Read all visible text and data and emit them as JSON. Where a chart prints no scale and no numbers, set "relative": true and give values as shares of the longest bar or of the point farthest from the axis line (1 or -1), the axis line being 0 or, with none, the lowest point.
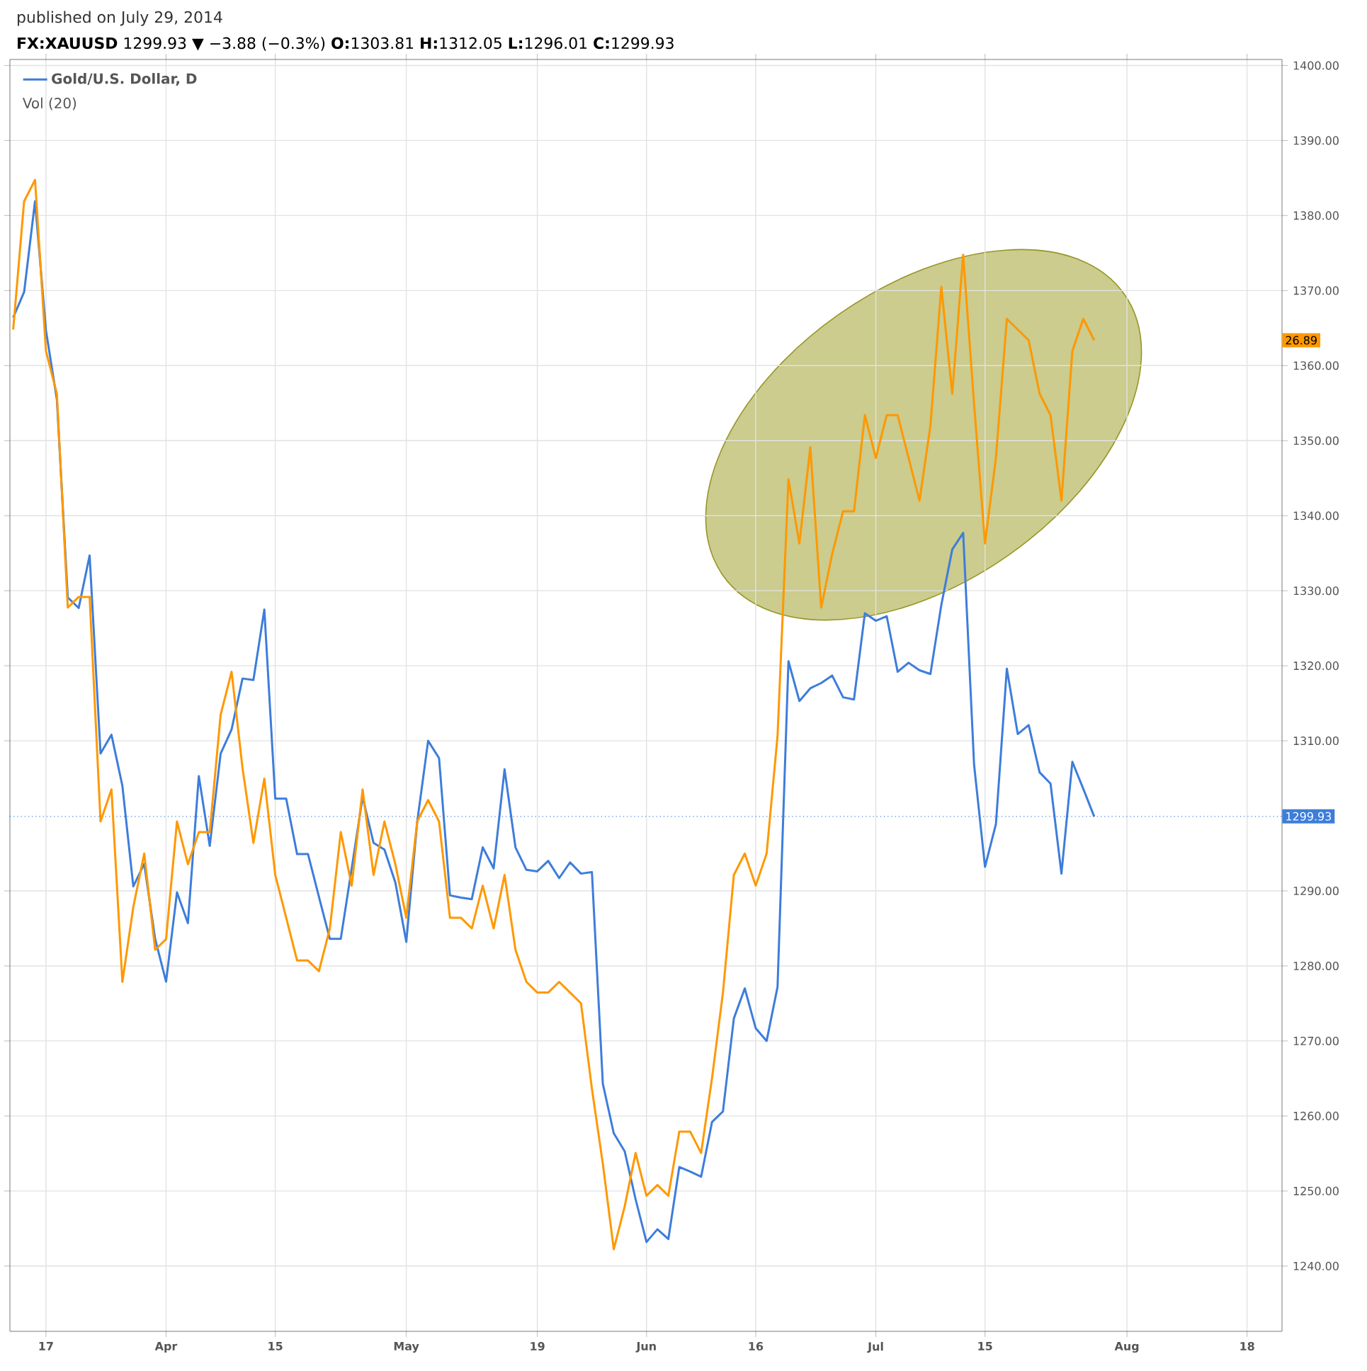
{
  "chart_data": [
    {
      "type": "line",
      "title": "published on July 29, 2014",
      "subtitle": "**FX:XAUUSD** 1299.93 ▼ −3.88 (−0.3%) **O:**1303.81 **H:**1312.05 **L:**1296.01 **C:**1299.93",
      "annotations": [
        "Vol (20)"
      ],
      "categories": [
        null,
        null,
        null,
        "17",
        null,
        null,
        null,
        null,
        null,
        null,
        null,
        null,
        null,
        null,
        "Apr",
        null,
        null,
        null,
        null,
        null,
        null,
        null,
        null,
        null,
        "15",
        null,
        null,
        null,
        null,
        null,
        null,
        null,
        null,
        null,
        null,
        null,
        "May",
        null,
        null,
        null,
        null,
        null,
        null,
        null,
        null,
        null,
        null,
        null,
        "19",
        null,
        null,
        null,
        null,
        null,
        null,
        null,
        null,
        null,
        "Jun",
        null,
        null,
        null,
        null,
        null,
        null,
        null,
        null,
        null,
        "16",
        null,
        null,
        null,
        null,
        null,
        null,
        null,
        null,
        null,
        null,
        "Jul",
        null,
        null,
        null,
        null,
        null,
        null,
        null,
        null,
        null,
        "15",
        null,
        null,
        null,
        null,
        null,
        null,
        null,
        null,
        null,
        null,
        null,
        null,
        "Aug",
        null,
        null,
        null,
        null,
        null,
        null,
        null,
        null,
        null,
        null,
        "18",
        null,
        null,
        null
      ],
      "series": [
        {
          "name": "Gold/U.S. Dollar, D",
          "color": "#3d7ddb",
          "values": [
            1366.4,
            1369.8,
            1381.9,
            1364.7,
            1355.5,
            1329.1,
            1327.7,
            1334.7,
            1308.3,
            1310.8,
            1304.0,
            1290.6,
            1293.6,
            1283.6,
            1277.9,
            1289.8,
            1285.7,
            1305.3,
            1296.0,
            1308.3,
            1311.5,
            1318.3,
            1318.1,
            1327.5,
            1302.3,
            1302.3,
            1294.9,
            1294.9,
            1289.2,
            1283.6,
            1283.6,
            1293.0,
            1302.5,
            1296.4,
            1295.5,
            1291.1,
            1283.2,
            1299.2,
            1310.0,
            1307.7,
            1289.4,
            1289.1,
            1288.9,
            1295.8,
            1293.0,
            1306.2,
            1295.8,
            1292.8,
            1292.6,
            1294.0,
            1291.7,
            1293.8,
            1292.3,
            1292.5,
            1264.3,
            1257.7,
            1255.3,
            1248.9,
            1243.2,
            1244.9,
            1243.6,
            1253.2,
            1252.6,
            1251.9,
            1259.2,
            1260.6,
            1273.0,
            1277.0,
            1271.7,
            1270.0,
            1277.2,
            1320.6,
            1315.3,
            1317.0,
            1317.7,
            1318.7,
            1315.8,
            1315.5,
            1327.0,
            1326.0,
            1326.6,
            1319.2,
            1320.4,
            1319.4,
            1318.9,
            1328.1,
            1335.5,
            1337.7,
            1306.8,
            1293.2,
            1298.9,
            1319.6,
            1310.9,
            1312.1,
            1305.8,
            1304.3,
            1292.3,
            1307.2,
            1303.6,
            1299.9,
            null,
            null,
            null,
            null,
            null,
            null,
            null,
            null,
            null,
            null,
            null,
            null,
            null,
            null,
            null,
            null,
            null
          ]
        }
      ],
      "ylim": [
        1231.3,
        1400.8
      ],
      "yticks": [
        {
          "value": 1240,
          "label": "1240.00"
        },
        {
          "value": 1250,
          "label": "1250.00"
        },
        {
          "value": 1260,
          "label": "1260.00"
        },
        {
          "value": 1270,
          "label": "1270.00"
        },
        {
          "value": 1280,
          "label": "1280.00"
        },
        {
          "value": 1290,
          "label": "1290.00"
        },
        {
          "value": 1310,
          "label": "1310.00"
        },
        {
          "value": 1320,
          "label": "1320.00"
        },
        {
          "value": 1330,
          "label": "1330.00"
        },
        {
          "value": 1340,
          "label": "1340.00"
        },
        {
          "value": 1350,
          "label": "1350.00"
        },
        {
          "value": 1360,
          "label": "1360.00"
        },
        {
          "value": 1370,
          "label": "1370.00"
        },
        {
          "value": 1380,
          "label": "1380.00"
        },
        {
          "value": 1390,
          "label": "1390.00"
        },
        {
          "value": 1400,
          "label": "1400.00"
        }
      ],
      "ref_lines": [
        {
          "axis": "y",
          "value": 1299.93,
          "label": "1299.93",
          "color": "#3d7ddb",
          "line_style": "dotted"
        }
      ],
      "grid": true,
      "legend": "top left",
      "marker": "none",
      "line_style": "solid"
    },
    {
      "type": "line",
      "relative": true,
      "annotations": [
        "26.89"
      ],
      "categories": [
        null,
        null,
        null,
        null,
        null,
        null,
        null,
        null,
        null,
        null,
        null,
        null,
        null,
        null,
        null,
        null,
        null,
        null,
        null,
        null,
        null,
        null,
        null,
        null,
        null,
        null,
        null,
        null,
        null,
        null,
        null,
        null,
        null,
        null,
        null,
        null,
        null,
        null,
        null,
        null,
        null,
        null,
        null,
        null,
        null,
        null,
        null,
        null,
        null,
        null,
        null,
        null,
        null,
        null,
        null,
        null,
        null,
        null,
        null,
        null,
        null,
        null,
        null,
        null,
        null,
        null,
        null,
        null,
        null,
        null,
        null,
        null,
        null,
        null,
        null,
        null,
        null,
        null,
        null,
        null,
        null,
        null,
        null,
        null,
        null,
        null,
        null,
        null,
        null,
        null,
        null,
        null,
        null,
        null,
        null,
        null,
        null,
        null,
        null,
        null,
        null,
        null,
        null,
        null,
        null,
        null,
        null,
        null,
        null,
        null,
        null,
        null,
        null,
        null,
        null,
        null,
        null
      ],
      "series": [
        {
          "color": "#ff9800",
          "values": [
            0.86,
            0.98,
            1,
            0.84,
            0.8,
            0.6,
            0.61,
            0.61,
            0.4,
            0.43,
            0.25,
            0.32,
            0.37,
            0.28,
            0.29,
            0.4,
            0.36,
            0.39,
            0.39,
            0.5,
            0.54,
            0.45,
            0.38,
            0.44,
            0.35,
            0.31,
            0.27,
            0.27,
            0.26,
            0.3,
            0.39,
            0.34,
            0.43,
            0.35,
            0.4,
            0.36,
            0.31,
            0.4,
            0.42,
            0.4,
            0.31,
            0.31,
            0.3,
            0.34,
            0.3,
            0.35,
            0.28,
            0.25,
            0.24,
            0.24,
            0.25,
            0.24,
            0.23,
            0.15,
            0.08,
            0,
            0.04,
            0.09,
            0.05,
            0.06,
            0.05,
            0.11,
            0.11,
            0.09,
            0.16,
            0.24,
            0.35,
            0.37,
            0.34,
            0.37,
            0.48,
            0.72,
            0.66,
            0.75,
            0.6,
            0.65,
            0.69,
            0.69,
            0.78,
            0.74,
            0.78,
            0.78,
            0.74,
            0.7,
            0.77,
            0.9,
            0.8,
            0.93,
            0.79,
            0.66,
            0.74,
            0.87,
            0.86,
            0.85,
            0.8,
            0.78,
            0.7,
            0.84,
            0.87,
            0.85,
            null,
            null,
            null,
            null,
            null,
            null,
            null,
            null,
            null,
            null,
            null,
            null,
            null,
            null,
            null,
            null,
            null
          ]
        }
      ],
      "marker": "none",
      "line_style": "solid"
    }
  ]
}
